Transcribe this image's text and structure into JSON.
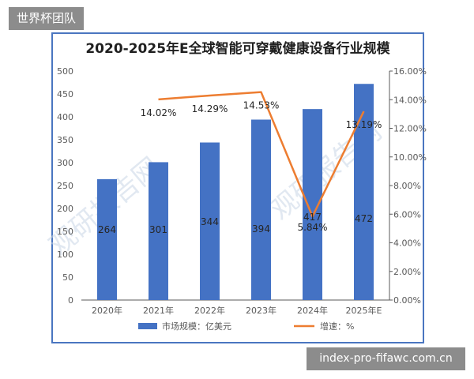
{
  "badge": {
    "label": "世界杯团队"
  },
  "site_label": "index-pro-fifawc.com.cn",
  "watermarks": [
    "观研报告网",
    "观研报告网"
  ],
  "colors": {
    "bar": "#4472c4",
    "line": "#ed7d31",
    "frame": "#4a76c0",
    "axis": "#595959",
    "grid": "#d9d9d9"
  },
  "chart_data": {
    "type": "bar",
    "title": "2020-2025年E全球智能可穿戴健康设备行业规模",
    "categories": [
      "2020年",
      "2021年",
      "2022年",
      "2023年",
      "2024年",
      "2025年E"
    ],
    "series": [
      {
        "name": "市场规模：亿美元",
        "type": "bar",
        "axis": "left",
        "values": [
          264,
          301,
          344,
          394,
          417,
          472
        ],
        "labels": [
          "264",
          "301",
          "344",
          "394",
          "417",
          "472"
        ]
      },
      {
        "name": "增速：%",
        "type": "line",
        "axis": "right",
        "values": [
          null,
          14.02,
          14.29,
          14.53,
          5.84,
          13.19
        ],
        "labels": [
          "",
          "14.02%",
          "14.29%",
          "14.53%",
          "5.84%",
          "13.19%"
        ]
      }
    ],
    "ylim": [
      0,
      500
    ],
    "yticks": [
      "0",
      "50",
      "100",
      "150",
      "200",
      "250",
      "300",
      "350",
      "400",
      "450",
      "500"
    ],
    "y2lim": [
      0,
      16
    ],
    "y2ticks": [
      "0.00%",
      "2.00%",
      "4.00%",
      "6.00%",
      "8.00%",
      "10.00%",
      "12.00%",
      "14.00%",
      "16.00%"
    ],
    "grid": false,
    "legend": "bottom"
  }
}
